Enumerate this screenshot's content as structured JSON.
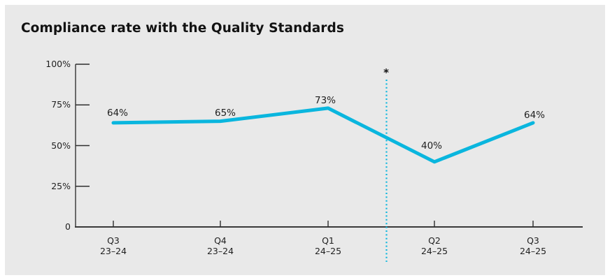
{
  "title": "Compliance rate with the Quality Standards",
  "chart_data": {
    "type": "line",
    "title": "Compliance rate with the Quality Standards",
    "categories": [
      "Q3 23–24",
      "Q4 23–24",
      "Q1 24–25",
      "Q2 24–25",
      "Q3 24–25"
    ],
    "category_lines": [
      [
        "Q3",
        "23–24"
      ],
      [
        "Q4",
        "23–24"
      ],
      [
        "Q1",
        "24–25"
      ],
      [
        "Q2",
        "24–25"
      ],
      [
        "Q3",
        "24–25"
      ]
    ],
    "values": [
      64,
      65,
      73,
      40,
      64
    ],
    "point_labels": [
      "64%",
      "65%",
      "73%",
      "40%",
      "64%"
    ],
    "y_tick_values": [
      100,
      75,
      50,
      25,
      0
    ],
    "y_tick_labels": [
      "100%",
      "75%",
      "50%",
      "25%",
      "0"
    ],
    "ylim": [
      0,
      100
    ],
    "xlabel": "",
    "ylabel": "",
    "grid": false,
    "legend": "none",
    "line_color": "#0ab6de",
    "annotation": {
      "symbol": "*",
      "style": "dotted-vertical-line",
      "color": "#0ab6de",
      "between_categories": [
        "Q1 24–25",
        "Q2 24–25"
      ]
    }
  },
  "colors": {
    "accent": "#0ab6de",
    "panel_background": "#e9e9e9",
    "page_background": "#ffffff",
    "text": "#1f1f1f",
    "axis_y": "#6a6a6a",
    "axis_x": "#3a3a3a",
    "tick": "#2e2e2e"
  }
}
